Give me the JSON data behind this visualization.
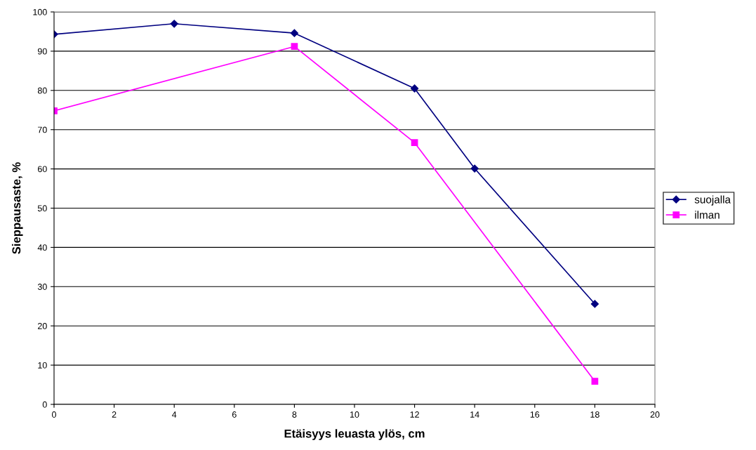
{
  "chart_data": {
    "type": "line",
    "xlabel": "Etäisyys leuasta ylös, cm",
    "ylabel": "Sieppausaste, %",
    "series": [
      {
        "name": "suojalla",
        "color": "#000080",
        "marker": "diamond",
        "x": [
          0,
          4,
          8,
          12,
          14,
          18
        ],
        "values": [
          94.3,
          97.0,
          94.6,
          80.5,
          60.1,
          25.6
        ]
      },
      {
        "name": "ilman",
        "color": "#ff00ff",
        "marker": "square",
        "x": [
          0,
          8,
          12,
          18
        ],
        "values": [
          74.8,
          91.2,
          66.7,
          5.9
        ]
      }
    ],
    "xlim": [
      0,
      20
    ],
    "xticks": [
      0,
      2,
      4,
      6,
      8,
      10,
      12,
      14,
      16,
      18,
      20
    ],
    "ylim": [
      0,
      100
    ],
    "yticks": [
      0,
      10,
      20,
      30,
      40,
      50,
      60,
      70,
      80,
      90,
      100
    ],
    "grid": "y",
    "legend": "right",
    "line_style": "solid"
  }
}
